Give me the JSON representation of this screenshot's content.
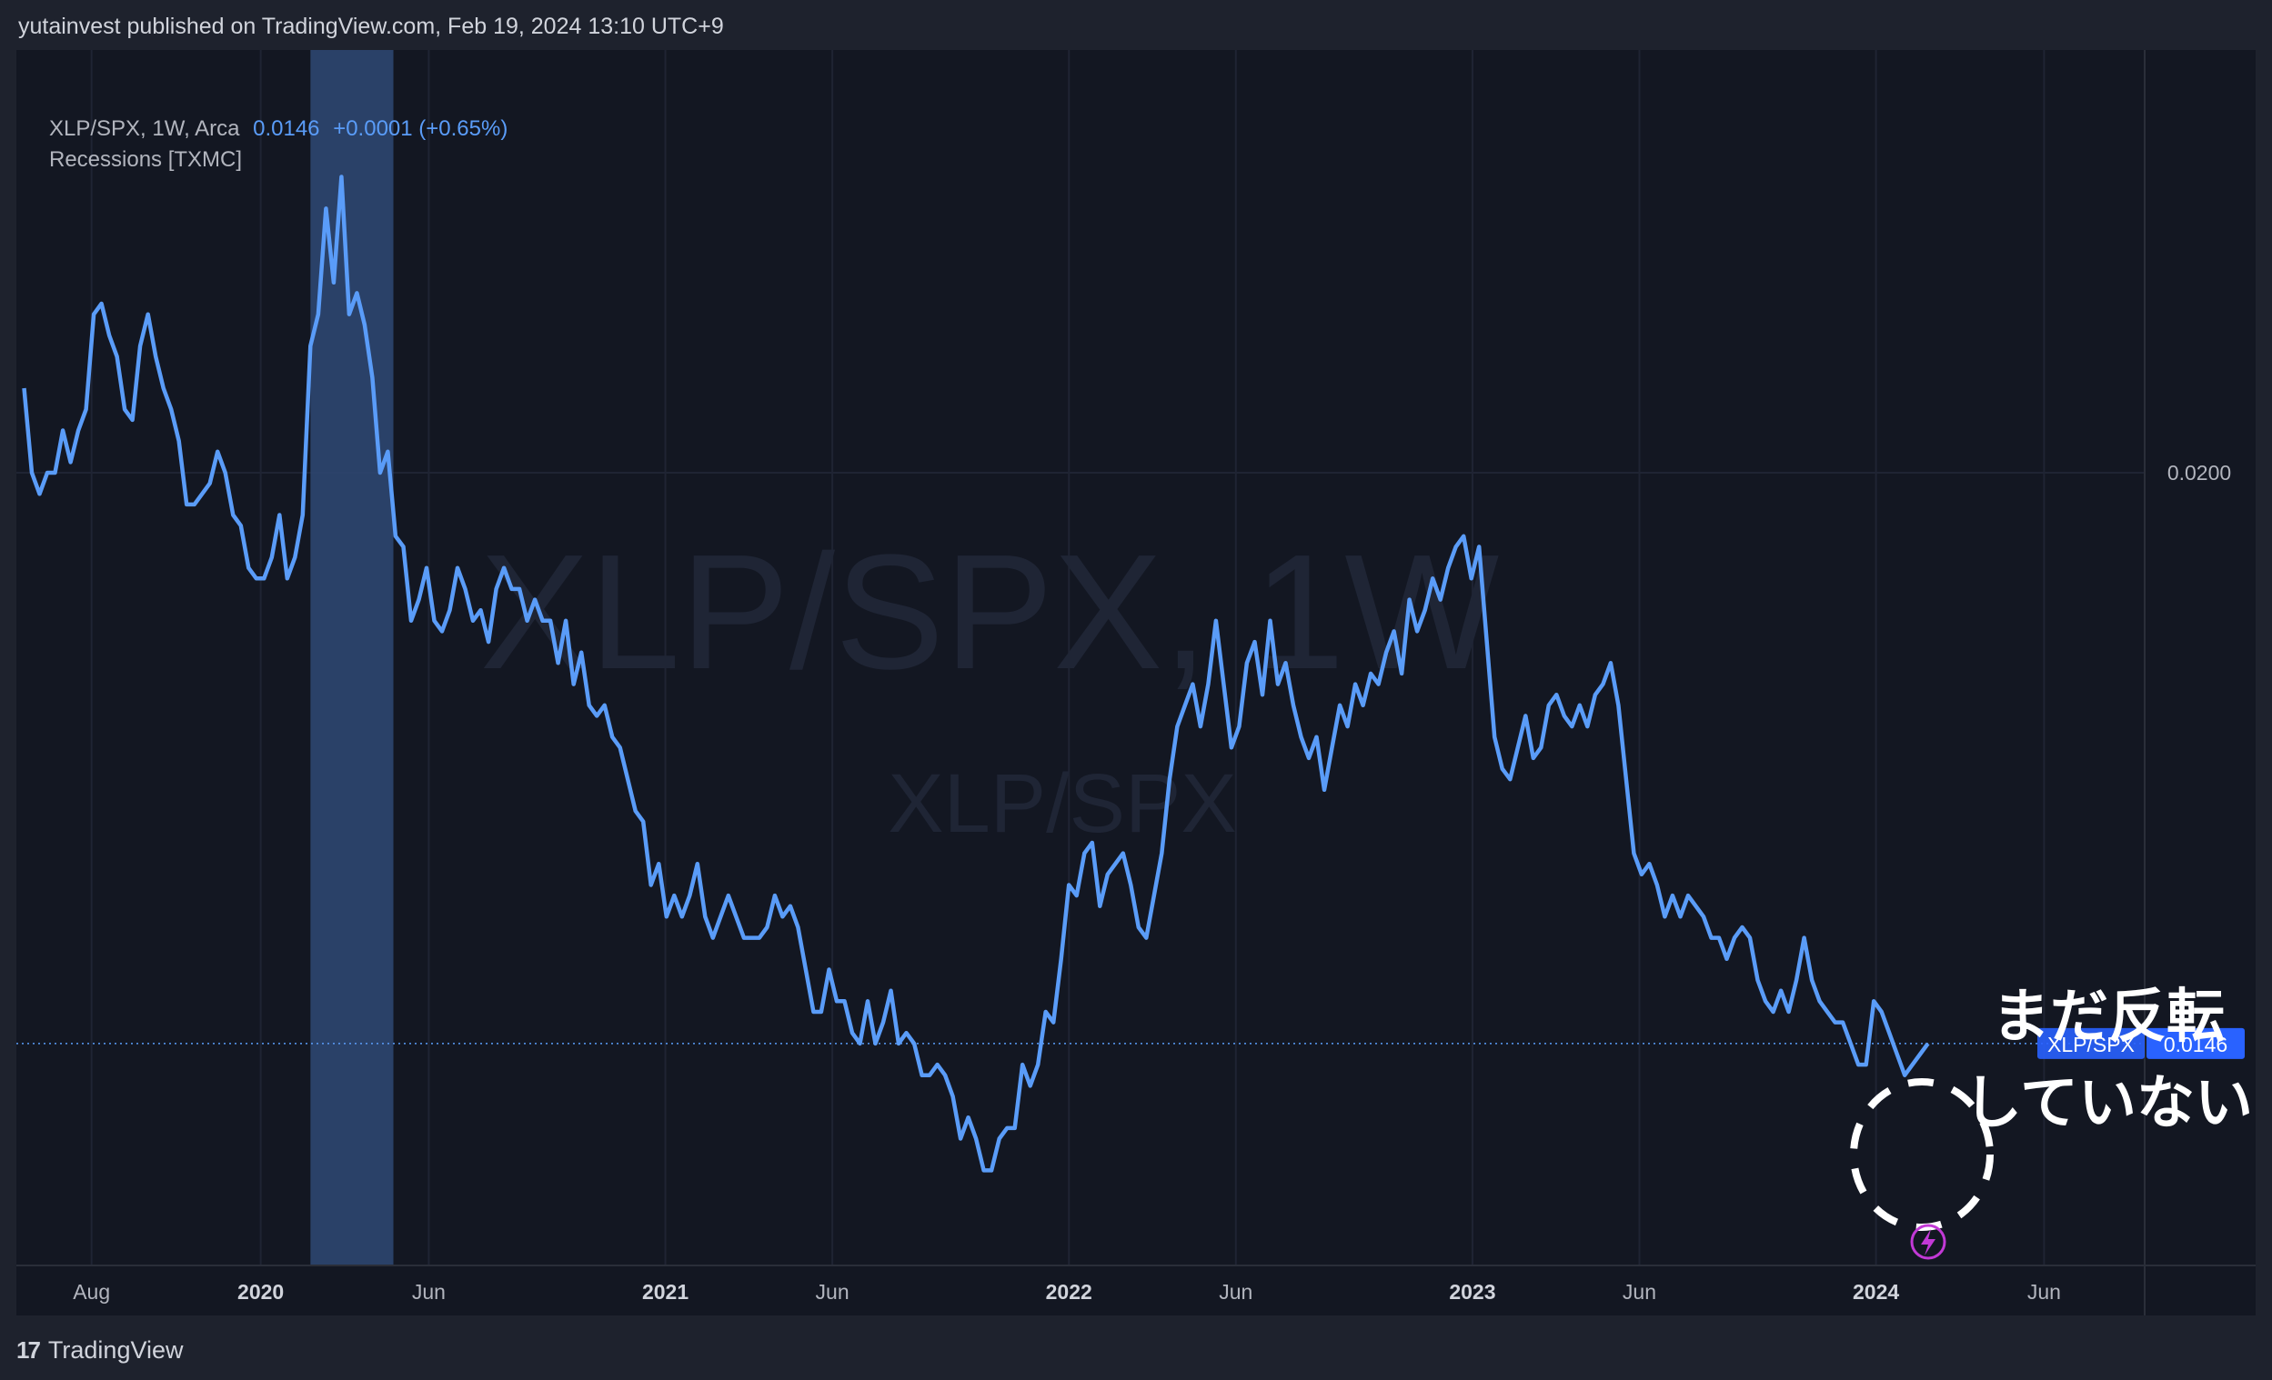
{
  "publish_line": "yutainvest published on TradingView.com, Feb 19, 2024 13:10 UTC+9",
  "legend": {
    "symbol": "XLP/SPX, 1W, Arca",
    "last": "0.0146",
    "change": "+0.0001 (+0.65%)",
    "indicator": "Recessions [TXMC]"
  },
  "watermark": {
    "big": "XLP/SPX, 1W",
    "small": "XLP/SPX"
  },
  "annotation": {
    "line1": "まだ反転",
    "line2": "していない"
  },
  "price_label": {
    "name": "XLP/SPX",
    "value": "0.0146"
  },
  "footer": {
    "brand": "TradingView",
    "logo_text": "17"
  },
  "colors": {
    "line": "#5a9cf8",
    "background": "#131722",
    "recession": "#2d4670",
    "annotation": "#ffffff",
    "flash_icon": "#c239d6"
  },
  "chart_data": {
    "type": "line",
    "title": "",
    "series": [
      {
        "name": "XLP/SPX",
        "points": [
          [
            "2019-06-01",
            0.0208
          ],
          [
            "2019-06-08",
            0.02
          ],
          [
            "2019-06-15",
            0.0198
          ],
          [
            "2019-06-22",
            0.02
          ],
          [
            "2019-06-29",
            0.02
          ],
          [
            "2019-07-06",
            0.0204
          ],
          [
            "2019-07-13",
            0.0201
          ],
          [
            "2019-07-20",
            0.0204
          ],
          [
            "2019-07-27",
            0.0206
          ],
          [
            "2019-08-03",
            0.0215
          ],
          [
            "2019-08-10",
            0.0216
          ],
          [
            "2019-08-17",
            0.0213
          ],
          [
            "2019-08-24",
            0.0211
          ],
          [
            "2019-08-31",
            0.0206
          ],
          [
            "2019-09-07",
            0.0205
          ],
          [
            "2019-09-14",
            0.0212
          ],
          [
            "2019-09-21",
            0.0215
          ],
          [
            "2019-09-28",
            0.0211
          ],
          [
            "2019-10-05",
            0.0208
          ],
          [
            "2019-10-12",
            0.0206
          ],
          [
            "2019-10-19",
            0.0203
          ],
          [
            "2019-10-26",
            0.0197
          ],
          [
            "2019-11-02",
            0.0197
          ],
          [
            "2019-11-09",
            0.0198
          ],
          [
            "2019-11-16",
            0.0199
          ],
          [
            "2019-11-23",
            0.0202
          ],
          [
            "2019-11-30",
            0.02
          ],
          [
            "2019-12-07",
            0.0196
          ],
          [
            "2019-12-14",
            0.0195
          ],
          [
            "2019-12-21",
            0.0191
          ],
          [
            "2019-12-28",
            0.019
          ],
          [
            "2020-01-04",
            0.019
          ],
          [
            "2020-01-11",
            0.0192
          ],
          [
            "2020-01-18",
            0.0196
          ],
          [
            "2020-01-25",
            0.019
          ],
          [
            "2020-02-01",
            0.0192
          ],
          [
            "2020-02-08",
            0.0196
          ],
          [
            "2020-02-15",
            0.0212
          ],
          [
            "2020-02-22",
            0.0215
          ],
          [
            "2020-02-29",
            0.0225
          ],
          [
            "2020-03-07",
            0.0218
          ],
          [
            "2020-03-14",
            0.0228
          ],
          [
            "2020-03-21",
            0.0215
          ],
          [
            "2020-03-28",
            0.0217
          ],
          [
            "2020-04-04",
            0.0214
          ],
          [
            "2020-04-11",
            0.0209
          ],
          [
            "2020-04-18",
            0.02
          ],
          [
            "2020-04-25",
            0.0202
          ],
          [
            "2020-05-02",
            0.0194
          ],
          [
            "2020-05-09",
            0.0193
          ],
          [
            "2020-05-16",
            0.0186
          ],
          [
            "2020-05-23",
            0.0188
          ],
          [
            "2020-05-30",
            0.0191
          ],
          [
            "2020-06-06",
            0.0186
          ],
          [
            "2020-06-13",
            0.0185
          ],
          [
            "2020-06-20",
            0.0187
          ],
          [
            "2020-06-27",
            0.0191
          ],
          [
            "2020-07-04",
            0.0189
          ],
          [
            "2020-07-11",
            0.0186
          ],
          [
            "2020-07-18",
            0.0187
          ],
          [
            "2020-07-25",
            0.0184
          ],
          [
            "2020-08-01",
            0.0189
          ],
          [
            "2020-08-08",
            0.0191
          ],
          [
            "2020-08-15",
            0.0189
          ],
          [
            "2020-08-22",
            0.0189
          ],
          [
            "2020-08-29",
            0.0186
          ],
          [
            "2020-09-05",
            0.0188
          ],
          [
            "2020-09-12",
            0.0186
          ],
          [
            "2020-09-19",
            0.0186
          ],
          [
            "2020-09-26",
            0.0182
          ],
          [
            "2020-10-03",
            0.0186
          ],
          [
            "2020-10-10",
            0.018
          ],
          [
            "2020-10-17",
            0.0183
          ],
          [
            "2020-10-24",
            0.0178
          ],
          [
            "2020-10-31",
            0.0177
          ],
          [
            "2020-11-07",
            0.0178
          ],
          [
            "2020-11-14",
            0.0175
          ],
          [
            "2020-11-21",
            0.0174
          ],
          [
            "2020-12-05",
            0.0168
          ],
          [
            "2020-12-12",
            0.0167
          ],
          [
            "2020-12-19",
            0.0161
          ],
          [
            "2020-12-26",
            0.0163
          ],
          [
            "2021-01-02",
            0.0158
          ],
          [
            "2021-01-09",
            0.016
          ],
          [
            "2021-01-16",
            0.0158
          ],
          [
            "2021-01-23",
            0.016
          ],
          [
            "2021-01-30",
            0.0163
          ],
          [
            "2021-02-06",
            0.0158
          ],
          [
            "2021-02-13",
            0.0156
          ],
          [
            "2021-02-20",
            0.0158
          ],
          [
            "2021-02-27",
            0.016
          ],
          [
            "2021-03-06",
            0.0158
          ],
          [
            "2021-03-13",
            0.0156
          ],
          [
            "2021-03-20",
            0.0156
          ],
          [
            "2021-03-27",
            0.0156
          ],
          [
            "2021-04-03",
            0.0157
          ],
          [
            "2021-04-10",
            0.016
          ],
          [
            "2021-04-17",
            0.0158
          ],
          [
            "2021-04-24",
            0.0159
          ],
          [
            "2021-05-01",
            0.0157
          ],
          [
            "2021-05-08",
            0.0153
          ],
          [
            "2021-05-15",
            0.0149
          ],
          [
            "2021-05-22",
            0.0149
          ],
          [
            "2021-05-29",
            0.0153
          ],
          [
            "2021-06-05",
            0.015
          ],
          [
            "2021-06-12",
            0.015
          ],
          [
            "2021-06-19",
            0.0147
          ],
          [
            "2021-06-26",
            0.0146
          ],
          [
            "2021-07-03",
            0.015
          ],
          [
            "2021-07-10",
            0.0146
          ],
          [
            "2021-07-17",
            0.0148
          ],
          [
            "2021-07-24",
            0.0151
          ],
          [
            "2021-07-31",
            0.0146
          ],
          [
            "2021-08-07",
            0.0147
          ],
          [
            "2021-08-14",
            0.0146
          ],
          [
            "2021-08-21",
            0.0143
          ],
          [
            "2021-08-28",
            0.0143
          ],
          [
            "2021-09-04",
            0.0144
          ],
          [
            "2021-09-11",
            0.0143
          ],
          [
            "2021-09-18",
            0.0141
          ],
          [
            "2021-09-25",
            0.0137
          ],
          [
            "2021-10-02",
            0.0139
          ],
          [
            "2021-10-09",
            0.0137
          ],
          [
            "2021-10-16",
            0.0134
          ],
          [
            "2021-10-23",
            0.0134
          ],
          [
            "2021-10-30",
            0.0137
          ],
          [
            "2021-11-06",
            0.0138
          ],
          [
            "2021-11-13",
            0.0138
          ],
          [
            "2021-11-20",
            0.0144
          ],
          [
            "2021-11-27",
            0.0142
          ],
          [
            "2021-12-04",
            0.0144
          ],
          [
            "2021-12-11",
            0.0149
          ],
          [
            "2021-12-18",
            0.0148
          ],
          [
            "2021-12-25",
            0.0154
          ],
          [
            "2022-01-01",
            0.0161
          ],
          [
            "2022-01-08",
            0.016
          ],
          [
            "2022-01-15",
            0.0164
          ],
          [
            "2022-01-22",
            0.0165
          ],
          [
            "2022-01-29",
            0.0159
          ],
          [
            "2022-02-05",
            0.0162
          ],
          [
            "2022-02-12",
            0.0163
          ],
          [
            "2022-02-19",
            0.0164
          ],
          [
            "2022-02-26",
            0.0161
          ],
          [
            "2022-03-05",
            0.0157
          ],
          [
            "2022-03-12",
            0.0156
          ],
          [
            "2022-03-19",
            0.016
          ],
          [
            "2022-03-26",
            0.0164
          ],
          [
            "2022-04-02",
            0.0171
          ],
          [
            "2022-04-09",
            0.0176
          ],
          [
            "2022-04-16",
            0.0178
          ],
          [
            "2022-04-23",
            0.018
          ],
          [
            "2022-04-30",
            0.0176
          ],
          [
            "2022-05-07",
            0.018
          ],
          [
            "2022-05-14",
            0.0186
          ],
          [
            "2022-05-21",
            0.018
          ],
          [
            "2022-05-28",
            0.0174
          ],
          [
            "2022-06-04",
            0.0176
          ],
          [
            "2022-06-11",
            0.0182
          ],
          [
            "2022-06-18",
            0.0184
          ],
          [
            "2022-06-25",
            0.0179
          ],
          [
            "2022-07-02",
            0.0186
          ],
          [
            "2022-07-09",
            0.018
          ],
          [
            "2022-07-16",
            0.0182
          ],
          [
            "2022-07-23",
            0.0178
          ],
          [
            "2022-07-30",
            0.0175
          ],
          [
            "2022-08-06",
            0.0173
          ],
          [
            "2022-08-13",
            0.0175
          ],
          [
            "2022-08-20",
            0.017
          ],
          [
            "2022-08-27",
            0.0174
          ],
          [
            "2022-09-03",
            0.0178
          ],
          [
            "2022-09-10",
            0.0176
          ],
          [
            "2022-09-17",
            0.018
          ],
          [
            "2022-09-24",
            0.0178
          ],
          [
            "2022-10-01",
            0.0181
          ],
          [
            "2022-10-08",
            0.018
          ],
          [
            "2022-10-15",
            0.0183
          ],
          [
            "2022-10-22",
            0.0185
          ],
          [
            "2022-10-29",
            0.0181
          ],
          [
            "2022-11-05",
            0.0188
          ],
          [
            "2022-11-12",
            0.0185
          ],
          [
            "2022-11-19",
            0.0187
          ],
          [
            "2022-11-26",
            0.019
          ],
          [
            "2022-12-03",
            0.0188
          ],
          [
            "2022-12-10",
            0.0191
          ],
          [
            "2022-12-17",
            0.0193
          ],
          [
            "2022-12-24",
            0.0194
          ],
          [
            "2022-12-31",
            0.019
          ],
          [
            "2023-01-07",
            0.0193
          ],
          [
            "2023-01-14",
            0.0184
          ],
          [
            "2023-01-21",
            0.0175
          ],
          [
            "2023-01-28",
            0.0172
          ],
          [
            "2023-02-04",
            0.0171
          ],
          [
            "2023-02-11",
            0.0174
          ],
          [
            "2023-02-18",
            0.0177
          ],
          [
            "2023-02-25",
            0.0173
          ],
          [
            "2023-03-04",
            0.0174
          ],
          [
            "2023-03-11",
            0.0178
          ],
          [
            "2023-03-18",
            0.0179
          ],
          [
            "2023-03-25",
            0.0177
          ],
          [
            "2023-04-01",
            0.0176
          ],
          [
            "2023-04-08",
            0.0178
          ],
          [
            "2023-04-15",
            0.0176
          ],
          [
            "2023-04-22",
            0.0179
          ],
          [
            "2023-04-29",
            0.018
          ],
          [
            "2023-05-06",
            0.0182
          ],
          [
            "2023-05-13",
            0.0178
          ],
          [
            "2023-05-20",
            0.0171
          ],
          [
            "2023-05-27",
            0.0164
          ],
          [
            "2023-06-03",
            0.0162
          ],
          [
            "2023-06-10",
            0.0163
          ],
          [
            "2023-06-17",
            0.0161
          ],
          [
            "2023-06-24",
            0.0158
          ],
          [
            "2023-07-01",
            0.016
          ],
          [
            "2023-07-08",
            0.0158
          ],
          [
            "2023-07-15",
            0.016
          ],
          [
            "2023-07-22",
            0.0159
          ],
          [
            "2023-07-29",
            0.0158
          ],
          [
            "2023-08-05",
            0.0156
          ],
          [
            "2023-08-12",
            0.0156
          ],
          [
            "2023-08-19",
            0.0154
          ],
          [
            "2023-08-26",
            0.0156
          ],
          [
            "2023-09-02",
            0.0157
          ],
          [
            "2023-09-09",
            0.0156
          ],
          [
            "2023-09-16",
            0.0152
          ],
          [
            "2023-09-23",
            0.015
          ],
          [
            "2023-09-30",
            0.0149
          ],
          [
            "2023-10-07",
            0.0151
          ],
          [
            "2023-10-14",
            0.0149
          ],
          [
            "2023-10-21",
            0.0152
          ],
          [
            "2023-10-28",
            0.0156
          ],
          [
            "2023-11-04",
            0.0152
          ],
          [
            "2023-11-11",
            0.015
          ],
          [
            "2023-11-18",
            0.0149
          ],
          [
            "2023-11-25",
            0.0148
          ],
          [
            "2023-12-02",
            0.0148
          ],
          [
            "2023-12-09",
            0.0146
          ],
          [
            "2023-12-16",
            0.0144
          ],
          [
            "2023-12-23",
            0.0144
          ],
          [
            "2023-12-30",
            0.015
          ],
          [
            "2024-01-06",
            0.0149
          ],
          [
            "2024-01-13",
            0.0147
          ],
          [
            "2024-01-20",
            0.0145
          ],
          [
            "2024-01-27",
            0.0143
          ],
          [
            "2024-02-03",
            0.0144
          ],
          [
            "2024-02-10",
            0.0145
          ],
          [
            "2024-02-17",
            0.0146
          ]
        ]
      }
    ],
    "recession_band": [
      "2020-02-15",
      "2020-04-30"
    ],
    "last_value": 0.0146,
    "y_tick": {
      "value": 0.02,
      "label": "0.0200"
    },
    "ylim": [
      0.0125,
      0.024
    ],
    "x_range": [
      "2019-05-25",
      "2024-08-31"
    ],
    "x_ticks": [
      {
        "date": "2019-08-01",
        "label": "Aug",
        "bold": false
      },
      {
        "date": "2020-01-01",
        "label": "2020",
        "bold": true
      },
      {
        "date": "2020-06-01",
        "label": "Jun",
        "bold": false
      },
      {
        "date": "2021-01-01",
        "label": "2021",
        "bold": true
      },
      {
        "date": "2021-06-01",
        "label": "Jun",
        "bold": false
      },
      {
        "date": "2022-01-01",
        "label": "2022",
        "bold": true
      },
      {
        "date": "2022-06-01",
        "label": "Jun",
        "bold": false
      },
      {
        "date": "2023-01-01",
        "label": "2023",
        "bold": true
      },
      {
        "date": "2023-06-01",
        "label": "Jun",
        "bold": false
      },
      {
        "date": "2024-01-01",
        "label": "2024",
        "bold": true
      },
      {
        "date": "2024-06-01",
        "label": "Jun",
        "bold": false
      }
    ],
    "grid": true
  }
}
